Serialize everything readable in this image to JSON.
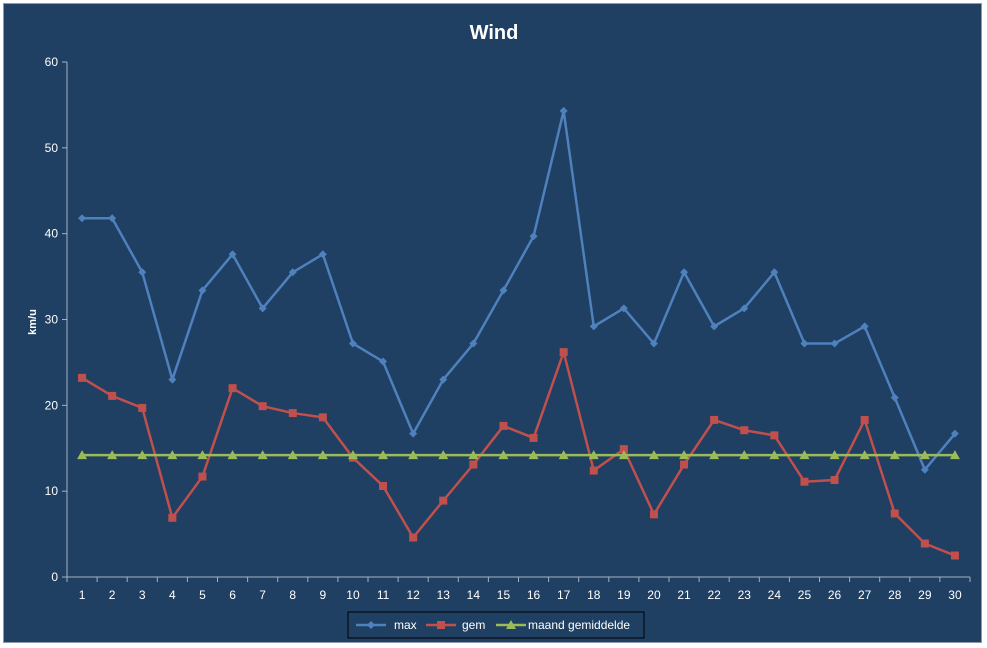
{
  "chart_data": {
    "type": "line",
    "title": "Wind",
    "ylabel": "km/u",
    "xlabel": "",
    "ylim": [
      0,
      60
    ],
    "yticks": [
      0,
      10,
      20,
      30,
      40,
      50,
      60
    ],
    "x": [
      1,
      2,
      3,
      4,
      5,
      6,
      7,
      8,
      9,
      10,
      11,
      12,
      13,
      14,
      15,
      16,
      17,
      18,
      19,
      20,
      21,
      22,
      23,
      24,
      25,
      26,
      27,
      28,
      29,
      30
    ],
    "grid": false,
    "legend_position": "bottom",
    "series": [
      {
        "name": "max",
        "color": "#4f81bd",
        "marker": "diamond",
        "values": [
          41.8,
          41.8,
          35.5,
          23.0,
          33.4,
          37.6,
          31.3,
          35.5,
          37.6,
          27.2,
          25.1,
          16.7,
          23.0,
          27.2,
          33.4,
          39.7,
          54.3,
          29.2,
          31.3,
          27.2,
          35.5,
          29.2,
          31.3,
          35.5,
          27.2,
          27.2,
          29.2,
          20.9,
          12.5,
          16.7
        ]
      },
      {
        "name": "gem",
        "color": "#c0504d",
        "marker": "square",
        "values": [
          23.2,
          21.1,
          19.7,
          6.9,
          11.7,
          22.0,
          19.9,
          19.1,
          18.6,
          13.9,
          10.6,
          4.6,
          8.9,
          13.1,
          17.6,
          16.2,
          26.2,
          12.4,
          14.9,
          7.3,
          13.1,
          18.3,
          17.1,
          16.5,
          11.1,
          11.3,
          18.3,
          7.4,
          3.9,
          2.5
        ]
      },
      {
        "name": "maand gemiddelde",
        "color": "#9bbb59",
        "marker": "triangle",
        "values": [
          14.2,
          14.2,
          14.2,
          14.2,
          14.2,
          14.2,
          14.2,
          14.2,
          14.2,
          14.2,
          14.2,
          14.2,
          14.2,
          14.2,
          14.2,
          14.2,
          14.2,
          14.2,
          14.2,
          14.2,
          14.2,
          14.2,
          14.2,
          14.2,
          14.2,
          14.2,
          14.2,
          14.2,
          14.2,
          14.2
        ]
      }
    ]
  }
}
